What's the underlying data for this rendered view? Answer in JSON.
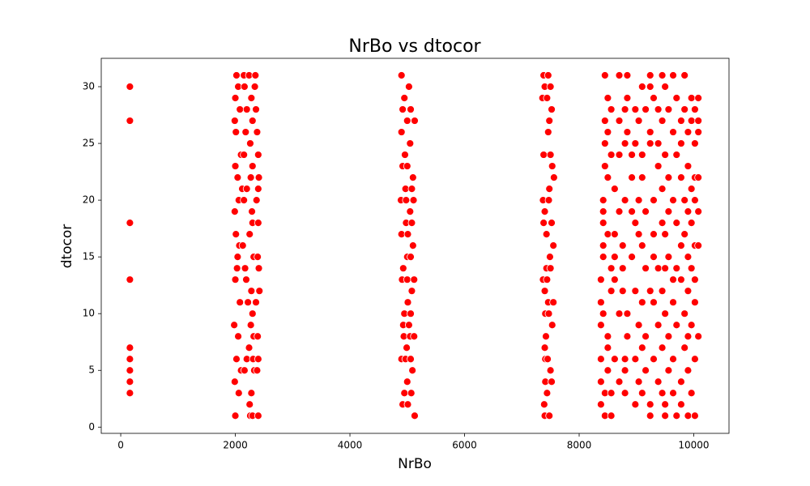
{
  "chart_data": {
    "type": "scatter",
    "title": "NrBo vs dtocor",
    "x_label": "NrBo",
    "y_label": "dtocor",
    "color": "#ff0000",
    "edgecolor": "#ffffff",
    "xlim": [
      -340,
      10615
    ],
    "ylim": [
      -0.55,
      32.5
    ],
    "xticks": [
      0,
      2000,
      4000,
      6000,
      8000,
      10000
    ],
    "yticks": [
      0,
      5,
      10,
      15,
      20,
      25,
      30
    ],
    "x": [
      160,
      160,
      160,
      160,
      160,
      160,
      160,
      160,
      160,
      2000,
      2020,
      2050,
      2000,
      2080,
      1990,
      2010,
      2100,
      2000,
      2040,
      2120,
      2060,
      1990,
      2010,
      2070,
      2040,
      2030,
      2000,
      2080,
      1980,
      2050,
      2020,
      1990,
      2060,
      2100,
      2150,
      2160,
      2200,
      2180,
      2150,
      2200,
      2150,
      2130,
      2170,
      2190,
      2220,
      2240,
      2200,
      2160,
      2250,
      2260,
      2240,
      2280,
      2300,
      2260,
      2300,
      2270,
      2290,
      2300,
      2250,
      2320,
      2280,
      2300,
      2270,
      2320,
      2310,
      2330,
      2280,
      2300,
      2350,
      2340,
      2360,
      2380,
      2400,
      2410,
      2400,
      2370,
      2400,
      2390,
      2410,
      2420,
      2360,
      2390,
      2400,
      2380,
      2400,
      4900,
      5030,
      4950,
      4920,
      5060,
      5000,
      5130,
      4900,
      5050,
      4960,
      4920,
      5000,
      5100,
      4970,
      5080,
      4890,
      4980,
      5110,
      5050,
      4980,
      5080,
      4900,
      5010,
      5100,
      5000,
      5060,
      4930,
      4910,
      5000,
      5120,
      5080,
      5010,
      4950,
      5060,
      4930,
      5030,
      4940,
      5050,
      5120,
      4990,
      4900,
      4970,
      5060,
      5090,
      5000,
      4950,
      5070,
      4920,
      5010,
      5130,
      7380,
      7460,
      7400,
      7500,
      7360,
      7440,
      7520,
      7480,
      7460,
      7380,
      7500,
      7530,
      7560,
      7480,
      7370,
      7470,
      7400,
      7380,
      7520,
      7430,
      7550,
      7490,
      7430,
      7500,
      7370,
      7440,
      7400,
      7460,
      7550,
      7410,
      7470,
      7530,
      7420,
      7400,
      7410,
      7450,
      7500,
      7410,
      7520,
      7440,
      7390,
      7400,
      7480,
      8380,
      8380,
      8380,
      8380,
      8380,
      8380,
      8420,
      8420,
      8420,
      8420,
      8420,
      8420,
      8450,
      8450,
      8450,
      8450,
      8450,
      8450,
      8500,
      8500,
      8500,
      8500,
      8500,
      8500,
      8500,
      8560,
      8560,
      8560,
      8560,
      8560,
      8560,
      8620,
      8620,
      8620,
      8620,
      8620,
      8700,
      8700,
      8700,
      8700,
      8700,
      8700,
      8760,
      8760,
      8760,
      8800,
      8800,
      8800,
      8800,
      8800,
      8800,
      8840,
      8840,
      8840,
      8840,
      8840,
      8920,
      8920,
      8920,
      8920,
      8980,
      8980,
      8980,
      8980,
      8980,
      8980,
      9040,
      9040,
      9040,
      9040,
      9040,
      9100,
      9100,
      9100,
      9100,
      9100,
      9100,
      9100,
      9160,
      9160,
      9160,
      9160,
      9160,
      9240,
      9240,
      9240,
      9240,
      9240,
      9240,
      9240,
      9300,
      9300,
      9300,
      9300,
      9300,
      9300,
      9380,
      9380,
      9380,
      9380,
      9380,
      9380,
      9450,
      9450,
      9450,
      9450,
      9450,
      9450,
      9450,
      9500,
      9500,
      9500,
      9500,
      9500,
      9500,
      9500,
      9560,
      9560,
      9560,
      9560,
      9560,
      9560,
      9640,
      9640,
      9640,
      9640,
      9640,
      9640,
      9640,
      9700,
      9700,
      9700,
      9700,
      9700,
      9700,
      9780,
      9780,
      9780,
      9780,
      9780,
      9780,
      9780,
      9840,
      9840,
      9840,
      9840,
      9840,
      9840,
      9900,
      9900,
      9900,
      9900,
      9900,
      9900,
      9900,
      9900,
      9960,
      9960,
      9960,
      9960,
      9960,
      9960,
      9960,
      10020,
      10020,
      10020,
      10020,
      10020,
      10020,
      10020,
      10020,
      10020,
      10080,
      10080,
      10080,
      10080,
      10080,
      10080,
      10080
    ],
    "values": [
      30,
      27,
      18,
      13,
      7,
      6,
      5,
      4,
      3,
      1,
      31,
      30,
      29,
      28,
      27,
      26,
      24,
      23,
      22,
      21,
      20,
      19,
      17,
      16,
      15,
      14,
      13,
      11,
      9,
      8,
      6,
      4,
      3,
      5,
      31,
      30,
      28,
      26,
      24,
      21,
      20,
      16,
      14,
      13,
      11,
      7,
      6,
      5,
      2,
      1,
      31,
      29,
      27,
      25,
      23,
      22,
      19,
      18,
      17,
      15,
      12,
      10,
      9,
      8,
      6,
      5,
      3,
      1,
      31,
      30,
      28,
      26,
      24,
      22,
      21,
      20,
      18,
      15,
      14,
      12,
      11,
      8,
      6,
      5,
      1,
      31,
      30,
      29,
      28,
      28,
      27,
      27,
      26,
      25,
      24,
      23,
      23,
      22,
      21,
      21,
      20,
      20,
      20,
      19,
      18,
      18,
      17,
      17,
      16,
      15,
      15,
      14,
      13,
      13,
      13,
      12,
      11,
      10,
      10,
      9,
      9,
      8,
      8,
      8,
      7,
      6,
      6,
      6,
      5,
      4,
      3,
      3,
      2,
      2,
      1,
      31,
      31,
      30,
      30,
      29,
      29,
      28,
      27,
      26,
      24,
      24,
      23,
      22,
      21,
      20,
      20,
      19,
      18,
      18,
      17,
      16,
      15,
      14,
      14,
      13,
      13,
      12,
      11,
      11,
      10,
      10,
      9,
      8,
      7,
      6,
      6,
      5,
      4,
      4,
      3,
      2,
      1,
      1,
      6,
      4,
      2,
      13,
      11,
      9,
      20,
      18,
      16,
      15,
      19,
      10,
      31,
      27,
      25,
      23,
      3,
      1,
      29,
      26,
      22,
      17,
      8,
      7,
      5,
      28,
      24,
      14,
      12,
      3,
      1,
      21,
      17,
      15,
      13,
      6,
      31,
      27,
      24,
      19,
      10,
      4,
      16,
      14,
      12,
      28,
      25,
      20,
      6,
      5,
      3,
      31,
      29,
      26,
      10,
      8,
      24,
      22,
      19,
      15,
      28,
      25,
      18,
      12,
      6,
      2,
      27,
      20,
      17,
      9,
      4,
      30,
      24,
      22,
      16,
      11,
      7,
      3,
      28,
      19,
      14,
      8,
      5,
      31,
      30,
      26,
      25,
      12,
      2,
      1,
      29,
      20,
      17,
      15,
      11,
      6,
      28,
      25,
      23,
      14,
      9,
      4,
      31,
      27,
      21,
      18,
      12,
      7,
      3,
      30,
      24,
      17,
      14,
      10,
      2,
      1,
      28,
      22,
      19,
      15,
      8,
      5,
      31,
      26,
      20,
      13,
      11,
      6,
      3,
      29,
      24,
      18,
      14,
      9,
      1,
      27,
      25,
      22,
      16,
      13,
      4,
      2,
      31,
      28,
      20,
      17,
      10,
      7,
      26,
      23,
      19,
      15,
      12,
      8,
      5,
      1,
      29,
      27,
      21,
      18,
      14,
      9,
      3,
      28,
      25,
      22,
      20,
      16,
      13,
      11,
      6,
      1,
      29,
      27,
      26,
      22,
      19,
      16,
      8
    ]
  }
}
